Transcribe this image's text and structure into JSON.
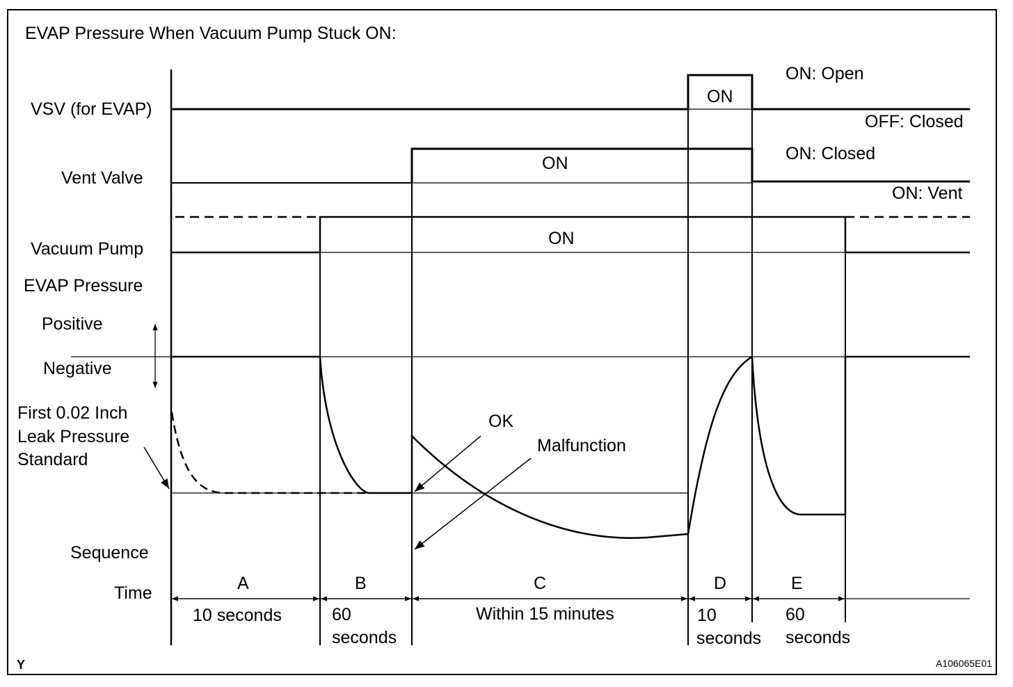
{
  "title": "EVAP Pressure When Vacuum Pump Stuck ON:",
  "signals": {
    "vsv": {
      "label": "VSV (for EVAP)",
      "on_text": "ON",
      "state_high": "ON: Open",
      "state_low": "OFF: Closed"
    },
    "vent": {
      "label": "Vent Valve",
      "on_text": "ON",
      "state_high": "ON: Closed",
      "state_low": "ON: Vent"
    },
    "pump": {
      "label": "Vacuum Pump",
      "on_text": "ON"
    }
  },
  "pressure": {
    "label": "EVAP Pressure",
    "positive": "Positive",
    "negative": "Negative",
    "standard_line1": "First 0.02 Inch",
    "standard_line2": "Leak Pressure",
    "standard_line3": "Standard",
    "ok": "OK",
    "malfunction": "Malfunction"
  },
  "sequence_label": "Sequence",
  "time_label": "Time",
  "phases": [
    {
      "letter": "A",
      "duration": "10 seconds"
    },
    {
      "letter": "B",
      "duration_line1": "60",
      "duration_line2": "seconds"
    },
    {
      "letter": "C",
      "duration": "Within 15 minutes"
    },
    {
      "letter": "D",
      "duration_line1": "10",
      "duration_line2": "seconds"
    },
    {
      "letter": "E",
      "duration_line1": "60",
      "duration_line2": "seconds"
    }
  ],
  "corner_mark": "Y",
  "figure_id": "A106065E01"
}
